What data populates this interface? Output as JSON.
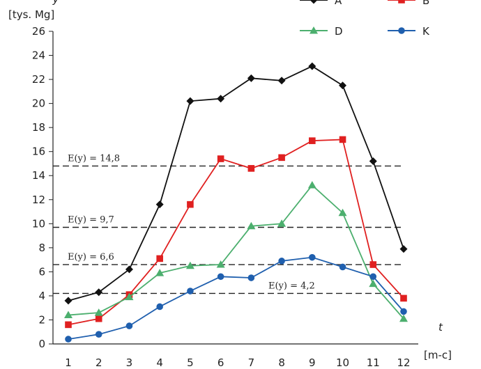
{
  "chart_data": {
    "type": "line",
    "ylabel_symbol": "y",
    "ylabel_unit": "[tys. Mg]",
    "xlabel_symbol": "t",
    "xlabel_unit": "[m-c]",
    "ylim": [
      0,
      26
    ],
    "yticks": [
      0,
      2,
      4,
      6,
      8,
      10,
      12,
      14,
      16,
      18,
      20,
      22,
      24,
      26
    ],
    "categories": [
      "1",
      "2",
      "3",
      "4",
      "5",
      "6",
      "7",
      "8",
      "9",
      "10",
      "11",
      "12"
    ],
    "legend_position": "top-right",
    "grid": false,
    "series": [
      {
        "name": "A",
        "color": "#111111",
        "marker": "diamond",
        "values": [
          3.6,
          4.3,
          6.2,
          11.6,
          20.2,
          20.4,
          22.1,
          21.9,
          23.1,
          21.5,
          15.2,
          7.9
        ]
      },
      {
        "name": "B",
        "color": "#e02020",
        "marker": "square",
        "values": [
          1.6,
          2.1,
          4.1,
          7.1,
          11.6,
          15.4,
          14.6,
          15.5,
          16.9,
          17.0,
          6.6,
          3.8
        ]
      },
      {
        "name": "D",
        "color": "#4caf6e",
        "marker": "triangle",
        "values": [
          2.4,
          2.6,
          3.9,
          5.9,
          6.5,
          6.6,
          9.8,
          10.0,
          13.2,
          10.9,
          5.0,
          2.1
        ]
      },
      {
        "name": "K",
        "color": "#1f5fae",
        "marker": "circle",
        "values": [
          0.4,
          0.8,
          1.5,
          3.1,
          4.4,
          5.6,
          5.5,
          6.9,
          7.2,
          6.4,
          5.6,
          2.7
        ]
      }
    ],
    "reference_lines": [
      {
        "value": 14.8,
        "label": "E(y) = 14,8",
        "label_anchor": "left"
      },
      {
        "value": 9.7,
        "label": "E(y) = 9,7",
        "label_anchor": "left"
      },
      {
        "value": 6.6,
        "label": "E(y) = 6,6",
        "label_anchor": "left"
      },
      {
        "value": 4.2,
        "label": "E(y) = 4,2",
        "label_anchor": "center"
      }
    ]
  }
}
